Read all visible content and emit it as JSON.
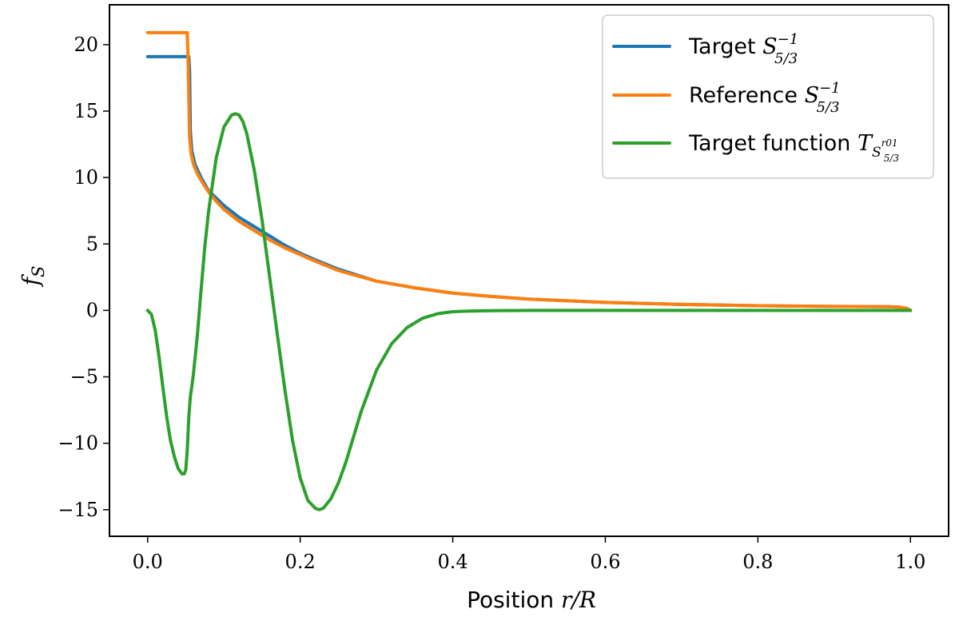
{
  "chart_data": {
    "type": "line",
    "xlabel": {
      "text": "Position",
      "math": "r/R"
    },
    "ylabel": {
      "math": "f",
      "sub": "S"
    },
    "xlim": [
      -0.05,
      1.05
    ],
    "ylim": [
      -17,
      23
    ],
    "xticks": [
      0.0,
      0.2,
      0.4,
      0.6,
      0.8,
      1.0
    ],
    "xtick_labels": [
      "0.0",
      "0.2",
      "0.4",
      "0.6",
      "0.8",
      "1.0"
    ],
    "yticks": [
      -15,
      -10,
      -5,
      0,
      5,
      10,
      15,
      20
    ],
    "ytick_labels": [
      "−15",
      "−10",
      "−5",
      "0",
      "5",
      "10",
      "15",
      "20"
    ],
    "grid": false,
    "legend_position": "top-right",
    "series": [
      {
        "name": "Target S_{5/3}^{-1}",
        "legend": {
          "text": "Target",
          "math": "S",
          "sup": "−1",
          "sub": "5/3"
        },
        "color": "#1f77b4",
        "x": [
          0.0,
          0.054,
          0.055,
          0.056,
          0.058,
          0.062,
          0.07,
          0.08,
          0.1,
          0.12,
          0.14,
          0.16,
          0.18,
          0.2,
          0.22,
          0.25,
          0.3,
          0.35,
          0.4,
          0.45,
          0.5,
          0.6,
          0.7,
          0.8,
          0.9,
          0.97,
          0.985,
          0.995,
          1.0
        ],
        "y": [
          19.1,
          19.1,
          18.0,
          13.5,
          12.0,
          11.0,
          10.0,
          9.0,
          7.9,
          7.0,
          6.3,
          5.6,
          4.9,
          4.3,
          3.8,
          3.1,
          2.2,
          1.7,
          1.3,
          1.05,
          0.85,
          0.6,
          0.45,
          0.35,
          0.3,
          0.28,
          0.25,
          0.15,
          0.0
        ]
      },
      {
        "name": "Reference S_{5/3}^{-1}",
        "legend": {
          "text": "Reference",
          "math": "S",
          "sup": "−1",
          "sub": "5/3"
        },
        "color": "#ff7f0e",
        "x": [
          0.0,
          0.052,
          0.053,
          0.054,
          0.055,
          0.057,
          0.06,
          0.065,
          0.07,
          0.08,
          0.09,
          0.1,
          0.12,
          0.14,
          0.16,
          0.18,
          0.2,
          0.22,
          0.25,
          0.3,
          0.35,
          0.4,
          0.45,
          0.5,
          0.6,
          0.7,
          0.8,
          0.9,
          0.97,
          0.985,
          0.995,
          1.0
        ],
        "y": [
          20.9,
          20.9,
          19.0,
          16.0,
          13.0,
          11.8,
          11.0,
          10.3,
          9.8,
          8.9,
          8.2,
          7.6,
          6.7,
          6.0,
          5.3,
          4.7,
          4.2,
          3.7,
          3.0,
          2.2,
          1.7,
          1.3,
          1.05,
          0.85,
          0.6,
          0.45,
          0.35,
          0.3,
          0.28,
          0.25,
          0.15,
          0.0
        ]
      },
      {
        "name": "Target function T_{S_{5/3}^{r01}}",
        "legend": {
          "text": "Target function",
          "math": "T",
          "sub": "S",
          "subsub": "5/3",
          "subsup": "r01"
        },
        "color": "#2ca02c",
        "x": [
          0.0,
          0.005,
          0.01,
          0.015,
          0.02,
          0.025,
          0.03,
          0.035,
          0.04,
          0.045,
          0.048,
          0.05,
          0.052,
          0.054,
          0.056,
          0.058,
          0.06,
          0.065,
          0.07,
          0.075,
          0.08,
          0.09,
          0.1,
          0.11,
          0.115,
          0.12,
          0.125,
          0.13,
          0.14,
          0.15,
          0.16,
          0.17,
          0.18,
          0.19,
          0.2,
          0.21,
          0.22,
          0.225,
          0.23,
          0.24,
          0.25,
          0.26,
          0.27,
          0.28,
          0.3,
          0.32,
          0.34,
          0.36,
          0.38,
          0.4,
          0.42,
          0.45,
          0.5,
          0.55,
          0.6,
          0.7,
          0.8,
          0.9,
          1.0
        ],
        "y": [
          0.0,
          -0.3,
          -1.5,
          -3.5,
          -5.8,
          -8.0,
          -9.8,
          -11.0,
          -11.9,
          -12.3,
          -12.3,
          -12.0,
          -10.5,
          -8.0,
          -6.5,
          -5.7,
          -4.8,
          -2.0,
          1.5,
          4.8,
          7.5,
          11.5,
          13.8,
          14.7,
          14.8,
          14.7,
          14.2,
          13.3,
          10.5,
          6.8,
          2.5,
          -1.8,
          -6.0,
          -9.8,
          -12.6,
          -14.3,
          -14.9,
          -15.0,
          -14.9,
          -14.2,
          -13.0,
          -11.4,
          -9.5,
          -7.6,
          -4.5,
          -2.5,
          -1.3,
          -0.6,
          -0.25,
          -0.1,
          -0.05,
          -0.02,
          0.0,
          0.0,
          0.0,
          0.0,
          0.0,
          0.0,
          0.0
        ]
      }
    ]
  }
}
